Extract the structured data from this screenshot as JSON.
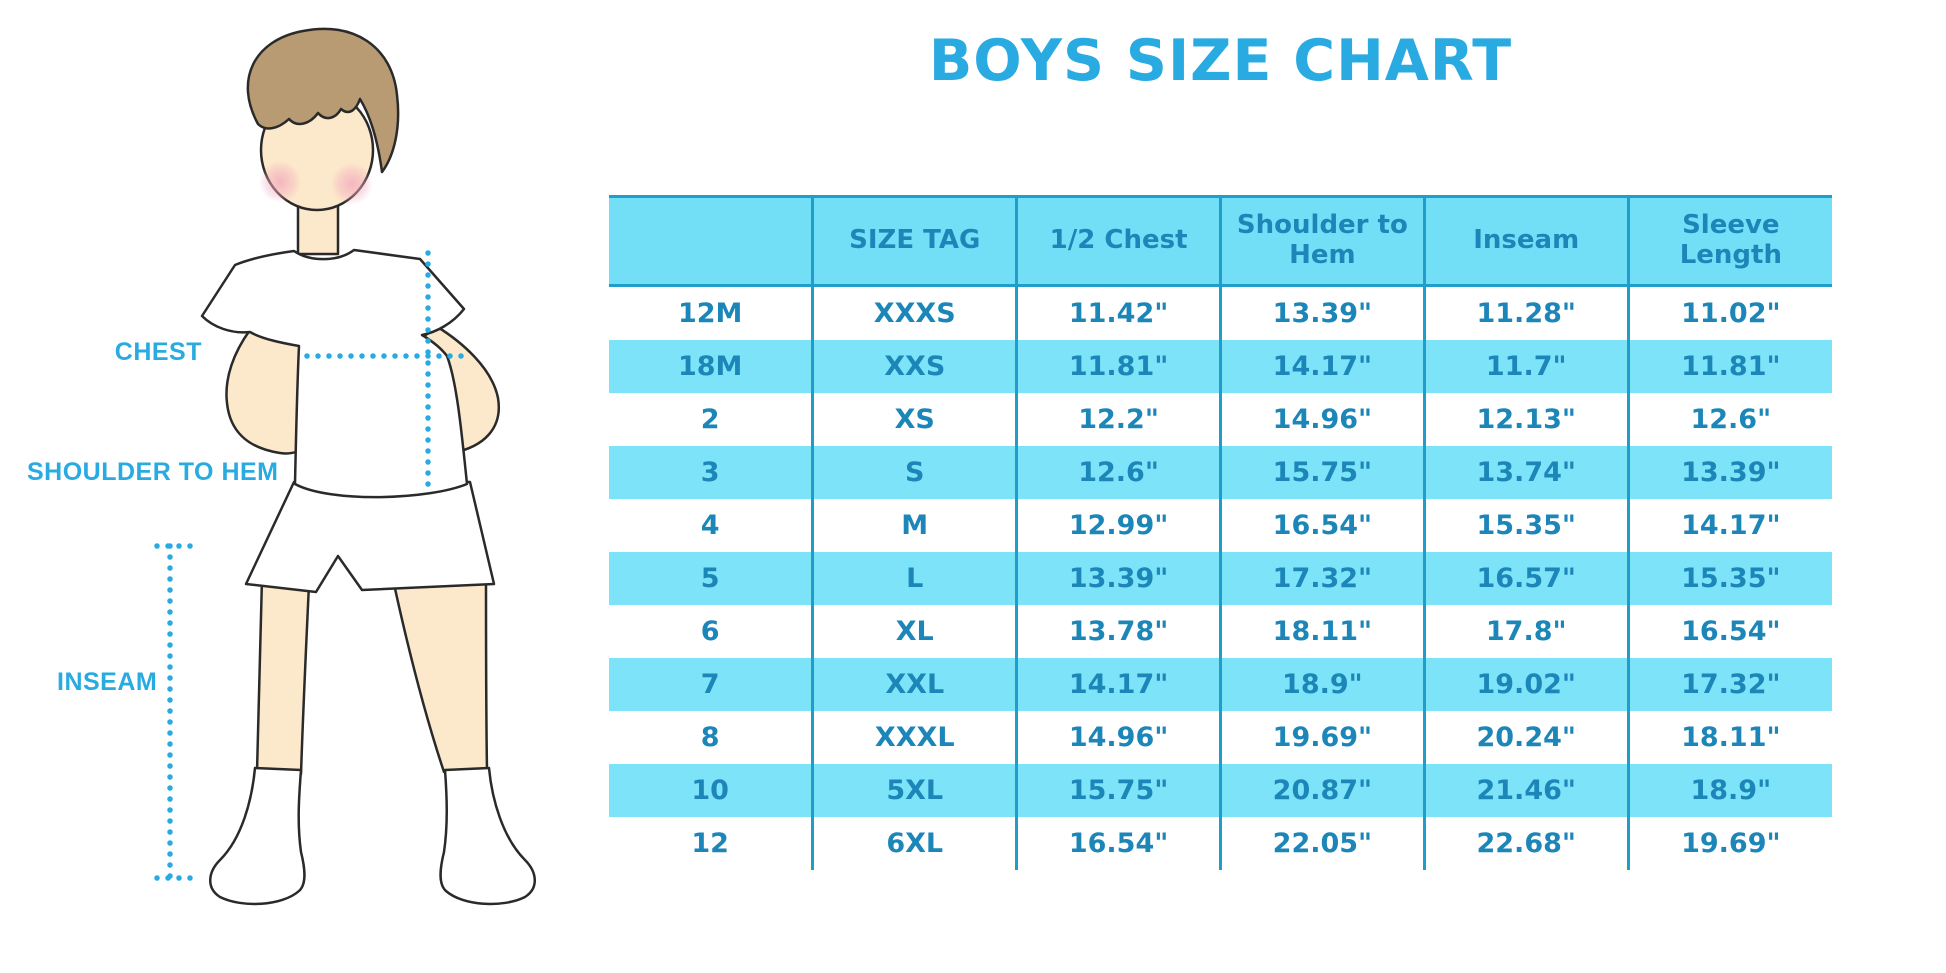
{
  "title": "BOYS SIZE CHART",
  "colors": {
    "accent": "#29abe2",
    "table-header-bg": "#73dff7",
    "table-stripe-bg": "#7de3f9",
    "table-text": "#1c86b8",
    "divider": "#1f9dcb",
    "outline": "#2a2a2a",
    "skin": "#fce8ca",
    "hair": "#b89b73"
  },
  "figure_labels": {
    "chest": "CHEST",
    "shoulder_to_hem": "SHOULDER TO HEM",
    "inseam": "INSEAM"
  },
  "chart_data": {
    "type": "table",
    "title": "BOYS SIZE CHART",
    "columns": [
      "",
      "SIZE TAG",
      "1/2 Chest",
      "Shoulder to Hem",
      "Inseam",
      "Sleeve Length"
    ],
    "rows": [
      [
        "12M",
        "XXXS",
        "11.42\"",
        "13.39\"",
        "11.28\"",
        "11.02\""
      ],
      [
        "18M",
        "XXS",
        "11.81\"",
        "14.17\"",
        "11.7\"",
        "11.81\""
      ],
      [
        "2",
        "XS",
        "12.2\"",
        "14.96\"",
        "12.13\"",
        "12.6\""
      ],
      [
        "3",
        "S",
        "12.6\"",
        "15.75\"",
        "13.74\"",
        "13.39\""
      ],
      [
        "4",
        "M",
        "12.99\"",
        "16.54\"",
        "15.35\"",
        "14.17\""
      ],
      [
        "5",
        "L",
        "13.39\"",
        "17.32\"",
        "16.57\"",
        "15.35\""
      ],
      [
        "6",
        "XL",
        "13.78\"",
        "18.11\"",
        "17.8\"",
        "16.54\""
      ],
      [
        "7",
        "XXL",
        "14.17\"",
        "18.9\"",
        "19.02\"",
        "17.32\""
      ],
      [
        "8",
        "XXXL",
        "14.96\"",
        "19.69\"",
        "20.24\"",
        "18.11\""
      ],
      [
        "10",
        "5XL",
        "15.75\"",
        "20.87\"",
        "21.46\"",
        "18.9\""
      ],
      [
        "12",
        "6XL",
        "16.54\"",
        "22.05\"",
        "22.68\"",
        "19.69\""
      ]
    ],
    "annotations": [
      "CHEST",
      "SHOULDER TO HEM",
      "INSEAM"
    ],
    "legend_position": "none",
    "grid": "column-dividers"
  }
}
